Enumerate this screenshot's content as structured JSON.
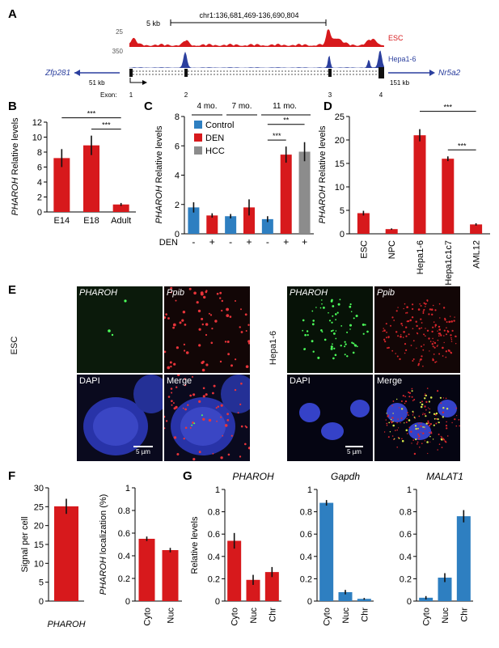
{
  "panels": {
    "A": {
      "letter": "A",
      "scale_label": "5 kb",
      "coords": "chr1:136,681,469-136,690,804",
      "tracks": [
        {
          "ymax": "25",
          "label": "ESC",
          "color": "#d7191c"
        },
        {
          "ymax": "350",
          "label": "Hepa1-6",
          "color": "#2b3f9e"
        }
      ],
      "gene_left": "Zfp281",
      "gene_right": "Nr5a2",
      "dist_left": "51 kb",
      "dist_right": "151 kb",
      "exon_label": "Exon:",
      "exons": [
        "1",
        "2",
        "3",
        "4"
      ]
    },
    "B": {
      "letter": "B"
    },
    "C": {
      "letter": "C",
      "period_labels": [
        "4 mo.",
        "7 mo.",
        "11 mo."
      ],
      "den_label": "DEN",
      "den_signs": [
        "-",
        "+",
        "-",
        "+",
        "-",
        "+",
        "+"
      ]
    },
    "D": {
      "letter": "D"
    },
    "E": {
      "letter": "E",
      "left_row_label": "ESC",
      "right_row_label": "Hepa1-6",
      "tile_labels": [
        "PHAROH",
        "Ppib",
        "DAPI",
        "Merge"
      ],
      "scale_bar": "5 µm"
    },
    "F": {
      "letter": "F"
    },
    "G": {
      "letter": "G"
    }
  },
  "chart_data": [
    {
      "panel": "B",
      "type": "bar",
      "categories": [
        "E14",
        "E18",
        "Adult"
      ],
      "values": [
        7.2,
        8.9,
        1.0
      ],
      "errors": [
        1.2,
        1.3,
        0.2
      ],
      "ylabel_italic": "PHAROH",
      "ylabel_rest": " Relative levels",
      "ylim": [
        0,
        12
      ],
      "yticks": [
        0,
        2,
        4,
        6,
        8,
        10,
        12
      ],
      "color": "#d7191c",
      "significance": [
        {
          "from": 0,
          "to": 2,
          "label": "***"
        },
        {
          "from": 1,
          "to": 2,
          "label": "***"
        }
      ]
    },
    {
      "panel": "C",
      "type": "bar",
      "categories": [
        "4 mo. -",
        "4 mo. +",
        "7 mo. -",
        "7 mo. +",
        "11 mo. -",
        "11 mo. +",
        "11 mo. +"
      ],
      "values": [
        1.8,
        1.25,
        1.2,
        1.8,
        1.0,
        5.4,
        5.6
      ],
      "errors": [
        0.35,
        0.15,
        0.15,
        0.55,
        0.2,
        0.55,
        0.65
      ],
      "groups": [
        "Control",
        "DEN",
        "Control",
        "DEN",
        "Control",
        "DEN",
        "HCC"
      ],
      "legend": [
        {
          "name": "Control",
          "color": "#2e7fc1"
        },
        {
          "name": "DEN",
          "color": "#d7191c"
        },
        {
          "name": "HCC",
          "color": "#8c8c8c"
        }
      ],
      "ylabel_italic": "PHAROH",
      "ylabel_rest": " Relative levels",
      "ylim": [
        0,
        8
      ],
      "yticks": [
        0,
        2,
        4,
        6,
        8
      ],
      "significance": [
        {
          "from": 4,
          "to": 6,
          "label": "**"
        },
        {
          "from": 4,
          "to": 5,
          "label": "***"
        }
      ]
    },
    {
      "panel": "D",
      "type": "bar",
      "categories": [
        "ESC",
        "NPC",
        "Hepa1-6",
        "Hepa1c1c7",
        "AML12"
      ],
      "values": [
        4.4,
        1.0,
        21.0,
        16.0,
        2.0
      ],
      "errors": [
        0.5,
        0.15,
        1.3,
        0.5,
        0.25
      ],
      "ylabel_italic": "PHAROH",
      "ylabel_rest": " Relative levels",
      "ylim": [
        0,
        25
      ],
      "yticks": [
        0,
        5,
        10,
        15,
        20,
        25
      ],
      "color": "#d7191c",
      "significance": [
        {
          "from": 2,
          "to": 4,
          "label": "***"
        },
        {
          "from": 3,
          "to": 4,
          "label": "***"
        }
      ]
    },
    {
      "panel": "F1",
      "type": "bar",
      "categories": [
        "PHAROH"
      ],
      "values": [
        25.1
      ],
      "errors": [
        2.0
      ],
      "ylabel": "Signal per cell",
      "ylim": [
        0,
        30
      ],
      "yticks": [
        0,
        5,
        10,
        15,
        20,
        25,
        30
      ],
      "color": "#d7191c"
    },
    {
      "panel": "F2",
      "type": "bar",
      "categories": [
        "Cyto",
        "Nuc"
      ],
      "values": [
        0.55,
        0.45
      ],
      "errors": [
        0.02,
        0.02
      ],
      "ylabel_italic": "PHAROH",
      "ylabel_rest": " localization (%)",
      "ylim": [
        0,
        1
      ],
      "yticks": [
        0,
        0.2,
        0.4,
        0.6,
        0.8,
        1
      ],
      "color": "#d7191c"
    },
    {
      "panel": "G1",
      "type": "bar",
      "title": "PHAROH",
      "categories": [
        "Cyto",
        "Nuc",
        "Chr"
      ],
      "values": [
        0.54,
        0.19,
        0.26
      ],
      "errors": [
        0.07,
        0.045,
        0.045
      ],
      "ylabel": "Relative levels",
      "ylim": [
        0,
        1
      ],
      "yticks": [
        0,
        0.2,
        0.4,
        0.6,
        0.8,
        1
      ],
      "color": "#d7191c"
    },
    {
      "panel": "G2",
      "type": "bar",
      "title": "Gapdh",
      "categories": [
        "Cyto",
        "Nuc",
        "Chr"
      ],
      "values": [
        0.88,
        0.08,
        0.02
      ],
      "errors": [
        0.025,
        0.02,
        0.008
      ],
      "ylim": [
        0,
        1
      ],
      "yticks": [
        0,
        0.2,
        0.4,
        0.6,
        0.8,
        1
      ],
      "color": "#2e7fc1"
    },
    {
      "panel": "G3",
      "type": "bar",
      "title": "MALAT1",
      "categories": [
        "Cyto",
        "Nuc",
        "Chr"
      ],
      "values": [
        0.03,
        0.21,
        0.76
      ],
      "errors": [
        0.015,
        0.04,
        0.055
      ],
      "ylim": [
        0,
        1
      ],
      "yticks": [
        0,
        0.2,
        0.4,
        0.6,
        0.8,
        1
      ],
      "color": "#2e7fc1"
    }
  ]
}
